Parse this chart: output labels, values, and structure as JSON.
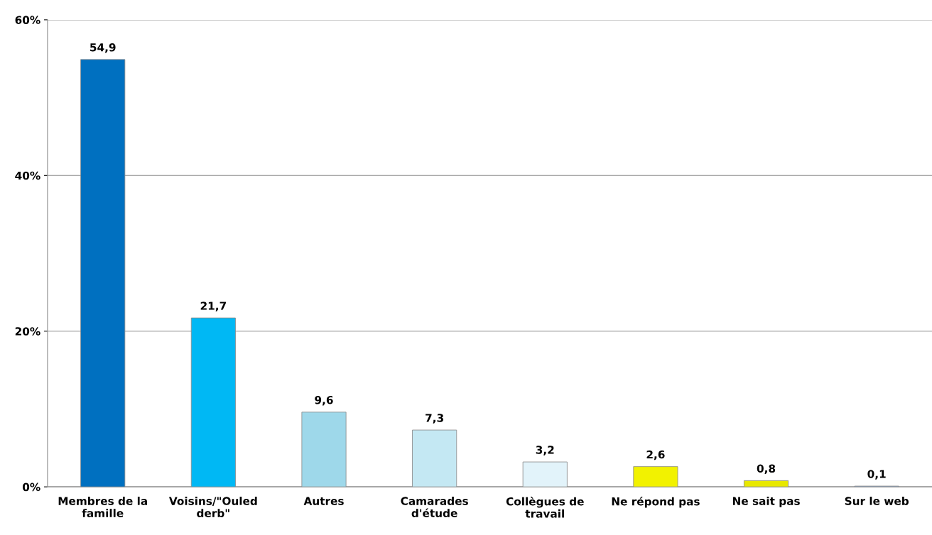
{
  "chart_data": {
    "type": "bar",
    "categories": [
      "Membres de la\nfamille",
      "Voisins/\"Ouled\nderb\"",
      "Autres",
      "Camarades\nd'étude",
      "Collègues de\ntravail",
      "Ne répond pas",
      "Ne sait pas",
      "Sur le web"
    ],
    "values": [
      54.9,
      21.7,
      9.6,
      7.3,
      3.2,
      2.6,
      0.8,
      0.1
    ],
    "colors": [
      "#0070c0",
      "#00b8f4",
      "#9ed8ea",
      "#c4e8f3",
      "#e2f3fa",
      "#f2f200",
      "#e8e800",
      "#8fa9c8"
    ],
    "value_labels": [
      "54,9",
      "21,7",
      "9,6",
      "7,3",
      "3,2",
      "2,6",
      "0,8",
      "0,1"
    ],
    "ylim": [
      0,
      60
    ],
    "yticks": [
      {
        "value": 0,
        "label": "0%"
      },
      {
        "value": 20,
        "label": "20%"
      },
      {
        "value": 40,
        "label": "40%"
      },
      {
        "value": 60,
        "label": "60%"
      }
    ],
    "grid": "y",
    "legend": false
  }
}
